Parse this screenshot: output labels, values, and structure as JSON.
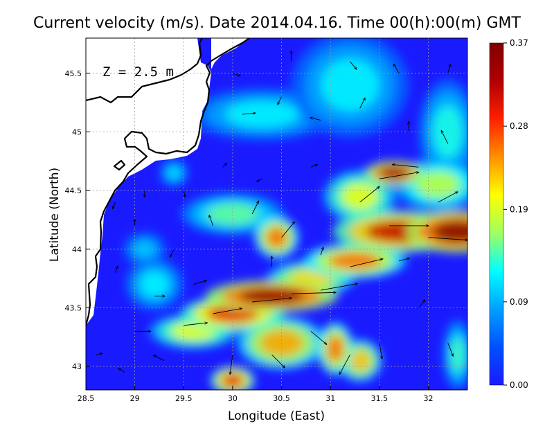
{
  "chart_data": {
    "type": "heatmap",
    "title": "Current velocity (m/s). Date 2014.04.16. Time 00(h):00(m) GMT",
    "depth_label": "Z = 2.5 m",
    "xlabel": "Longitude (East)",
    "ylabel": "Latitude (North)",
    "xlim": [
      28.5,
      32.4
    ],
    "ylim": [
      42.8,
      45.8
    ],
    "x_ticks": [
      28.5,
      29,
      29.5,
      30,
      30.5,
      31,
      31.5,
      32
    ],
    "x_tick_labels": [
      "28.5",
      "29",
      "29.5",
      "30",
      "30.5",
      "31",
      "31.5",
      "32"
    ],
    "y_ticks": [
      43,
      43.5,
      44,
      44.5,
      45,
      45.5
    ],
    "y_tick_labels": [
      "43",
      "43.5",
      "44",
      "44.5",
      "45",
      "45.5"
    ],
    "grid": true,
    "colorbar": {
      "min": 0.0,
      "max": 0.37,
      "ticks": [
        0.0,
        0.09,
        0.19,
        0.28,
        0.37
      ],
      "tick_labels": [
        "0.00",
        "0.09",
        "0.19",
        "0.28",
        "0.37"
      ],
      "colormap": [
        "#1a1aff",
        "#0050ff",
        "#00a0ff",
        "#00ffff",
        "#a0ff60",
        "#ffff00",
        "#ff9000",
        "#ff2000",
        "#b00000",
        "#800000"
      ]
    },
    "speed_hotspots": [
      {
        "lon": 30.4,
        "lat": 43.6,
        "speed": 0.36,
        "rx": 0.45,
        "ry": 0.09
      },
      {
        "lon": 30.0,
        "lat": 43.45,
        "speed": 0.3,
        "rx": 0.35,
        "ry": 0.1
      },
      {
        "lon": 29.6,
        "lat": 43.3,
        "speed": 0.2,
        "rx": 0.3,
        "ry": 0.1
      },
      {
        "lon": 32.3,
        "lat": 44.15,
        "speed": 0.37,
        "rx": 0.35,
        "ry": 0.12
      },
      {
        "lon": 31.7,
        "lat": 44.15,
        "speed": 0.32,
        "rx": 0.45,
        "ry": 0.12
      },
      {
        "lon": 31.25,
        "lat": 43.9,
        "speed": 0.26,
        "rx": 0.35,
        "ry": 0.1
      },
      {
        "lon": 30.8,
        "lat": 43.75,
        "speed": 0.22,
        "rx": 0.3,
        "ry": 0.1
      },
      {
        "lon": 31.65,
        "lat": 44.65,
        "speed": 0.35,
        "rx": 0.2,
        "ry": 0.07
      },
      {
        "lon": 31.3,
        "lat": 44.45,
        "speed": 0.2,
        "rx": 0.25,
        "ry": 0.15
      },
      {
        "lon": 32.1,
        "lat": 44.55,
        "speed": 0.18,
        "rx": 0.3,
        "ry": 0.15
      },
      {
        "lon": 30.45,
        "lat": 44.1,
        "speed": 0.26,
        "rx": 0.15,
        "ry": 0.12
      },
      {
        "lon": 30.0,
        "lat": 44.3,
        "speed": 0.15,
        "rx": 0.35,
        "ry": 0.12
      },
      {
        "lon": 30.5,
        "lat": 43.2,
        "speed": 0.24,
        "rx": 0.3,
        "ry": 0.15
      },
      {
        "lon": 30.0,
        "lat": 42.88,
        "speed": 0.3,
        "rx": 0.15,
        "ry": 0.08
      },
      {
        "lon": 31.05,
        "lat": 43.15,
        "speed": 0.26,
        "rx": 0.12,
        "ry": 0.15
      },
      {
        "lon": 31.3,
        "lat": 43.05,
        "speed": 0.23,
        "rx": 0.15,
        "ry": 0.12
      },
      {
        "lon": 29.2,
        "lat": 43.7,
        "speed": 0.12,
        "rx": 0.2,
        "ry": 0.15
      },
      {
        "lon": 30.3,
        "lat": 45.15,
        "speed": 0.12,
        "rx": 0.5,
        "ry": 0.15
      },
      {
        "lon": 31.2,
        "lat": 45.4,
        "speed": 0.12,
        "rx": 0.4,
        "ry": 0.3
      },
      {
        "lon": 32.2,
        "lat": 45.0,
        "speed": 0.13,
        "rx": 0.2,
        "ry": 0.3
      },
      {
        "lon": 29.4,
        "lat": 44.65,
        "speed": 0.11,
        "rx": 0.1,
        "ry": 0.08
      },
      {
        "lon": 29.1,
        "lat": 44.0,
        "speed": 0.1,
        "rx": 0.15,
        "ry": 0.1
      },
      {
        "lon": 32.3,
        "lat": 43.1,
        "speed": 0.14,
        "rx": 0.1,
        "ry": 0.2
      }
    ],
    "vectors": [
      {
        "lon": 28.6,
        "lat": 43.1,
        "u": 0.05,
        "v": 0.01
      },
      {
        "lon": 29.0,
        "lat": 43.3,
        "u": 0.12,
        "v": 0.0
      },
      {
        "lon": 29.5,
        "lat": 43.35,
        "u": 0.18,
        "v": 0.02
      },
      {
        "lon": 29.8,
        "lat": 43.45,
        "u": 0.22,
        "v": 0.04
      },
      {
        "lon": 30.2,
        "lat": 43.55,
        "u": 0.3,
        "v": 0.03
      },
      {
        "lon": 30.6,
        "lat": 43.62,
        "u": 0.34,
        "v": 0.01
      },
      {
        "lon": 30.9,
        "lat": 43.65,
        "u": 0.28,
        "v": 0.05
      },
      {
        "lon": 31.2,
        "lat": 43.85,
        "u": 0.25,
        "v": 0.06
      },
      {
        "lon": 31.6,
        "lat": 44.2,
        "u": 0.3,
        "v": 0.0
      },
      {
        "lon": 32.0,
        "lat": 44.1,
        "u": 0.3,
        "v": -0.02
      },
      {
        "lon": 31.5,
        "lat": 44.6,
        "u": 0.3,
        "v": 0.05
      },
      {
        "lon": 31.9,
        "lat": 44.7,
        "u": -0.2,
        "v": 0.02
      },
      {
        "lon": 31.3,
        "lat": 44.4,
        "u": 0.15,
        "v": 0.12
      },
      {
        "lon": 30.5,
        "lat": 44.1,
        "u": 0.1,
        "v": 0.12
      },
      {
        "lon": 30.2,
        "lat": 44.3,
        "u": 0.05,
        "v": 0.1
      },
      {
        "lon": 29.8,
        "lat": 44.2,
        "u": -0.03,
        "v": 0.08
      },
      {
        "lon": 29.4,
        "lat": 44.0,
        "u": -0.03,
        "v": -0.06
      },
      {
        "lon": 29.0,
        "lat": 44.2,
        "u": 0.0,
        "v": 0.05
      },
      {
        "lon": 28.8,
        "lat": 43.8,
        "u": 0.02,
        "v": 0.05
      },
      {
        "lon": 29.2,
        "lat": 43.6,
        "u": 0.08,
        "v": 0.0
      },
      {
        "lon": 30.0,
        "lat": 43.1,
        "u": -0.02,
        "v": -0.15
      },
      {
        "lon": 30.4,
        "lat": 43.1,
        "u": 0.1,
        "v": -0.1
      },
      {
        "lon": 30.8,
        "lat": 43.3,
        "u": 0.12,
        "v": -0.1
      },
      {
        "lon": 31.2,
        "lat": 43.1,
        "u": -0.08,
        "v": -0.15
      },
      {
        "lon": 31.5,
        "lat": 43.2,
        "u": 0.02,
        "v": -0.12
      },
      {
        "lon": 31.9,
        "lat": 43.5,
        "u": 0.05,
        "v": 0.06
      },
      {
        "lon": 32.2,
        "lat": 43.2,
        "u": 0.04,
        "v": -0.1
      },
      {
        "lon": 31.7,
        "lat": 43.9,
        "u": 0.08,
        "v": 0.02
      },
      {
        "lon": 32.1,
        "lat": 44.4,
        "u": 0.15,
        "v": 0.08
      },
      {
        "lon": 32.2,
        "lat": 44.9,
        "u": -0.05,
        "v": 0.1
      },
      {
        "lon": 31.8,
        "lat": 45.0,
        "u": 0.0,
        "v": 0.08
      },
      {
        "lon": 31.3,
        "lat": 45.2,
        "u": 0.04,
        "v": 0.08
      },
      {
        "lon": 30.9,
        "lat": 45.1,
        "u": -0.08,
        "v": 0.02
      },
      {
        "lon": 30.5,
        "lat": 45.3,
        "u": -0.03,
        "v": -0.06
      },
      {
        "lon": 30.1,
        "lat": 45.15,
        "u": 0.1,
        "v": 0.01
      },
      {
        "lon": 30.0,
        "lat": 45.5,
        "u": 0.06,
        "v": -0.02
      },
      {
        "lon": 30.6,
        "lat": 45.6,
        "u": 0.0,
        "v": 0.08
      },
      {
        "lon": 31.2,
        "lat": 45.6,
        "u": 0.05,
        "v": -0.06
      },
      {
        "lon": 31.7,
        "lat": 45.5,
        "u": -0.04,
        "v": 0.07
      },
      {
        "lon": 32.2,
        "lat": 45.5,
        "u": 0.02,
        "v": 0.07
      },
      {
        "lon": 30.8,
        "lat": 44.7,
        "u": 0.05,
        "v": 0.02
      },
      {
        "lon": 30.3,
        "lat": 44.6,
        "u": -0.04,
        "v": -0.02
      },
      {
        "lon": 29.9,
        "lat": 44.7,
        "u": 0.03,
        "v": 0.03
      },
      {
        "lon": 29.5,
        "lat": 44.5,
        "u": 0.01,
        "v": -0.05
      },
      {
        "lon": 29.1,
        "lat": 44.5,
        "u": 0.0,
        "v": -0.05
      },
      {
        "lon": 28.8,
        "lat": 44.4,
        "u": -0.02,
        "v": -0.05
      },
      {
        "lon": 30.4,
        "lat": 43.85,
        "u": 0.0,
        "v": 0.08
      },
      {
        "lon": 30.9,
        "lat": 43.95,
        "u": 0.02,
        "v": 0.06
      },
      {
        "lon": 29.6,
        "lat": 43.7,
        "u": 0.1,
        "v": 0.03
      },
      {
        "lon": 29.3,
        "lat": 43.05,
        "u": -0.08,
        "v": 0.04
      },
      {
        "lon": 28.9,
        "lat": 42.95,
        "u": -0.05,
        "v": 0.03
      }
    ]
  },
  "colors": {
    "background": "#ffffff",
    "land": "#ffffff",
    "coastline": "#000000",
    "grid": "#9a9a9a",
    "arrow": "#000000"
  }
}
